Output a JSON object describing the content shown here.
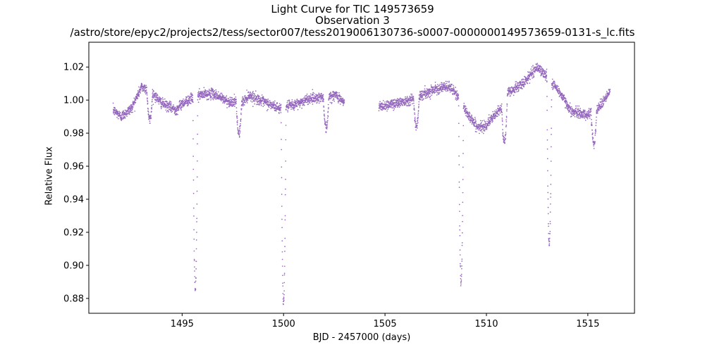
{
  "chart_data": {
    "type": "scatter",
    "title_lines": [
      "Light Curve for TIC 149573659",
      "Observation 3",
      "/astro/store/epyc2/projects2/tess/sector007/tess2019006130736-s0007-0000000149573659-0131-s_lc.fits"
    ],
    "xlabel": "BJD - 2457000 (days)",
    "ylabel": "Relative Flux",
    "xlim": [
      1490.4,
      1517.3
    ],
    "ylim": [
      0.871,
      1.035
    ],
    "xticks": [
      1495,
      1500,
      1505,
      1510,
      1515
    ],
    "yticks": [
      0.88,
      0.9,
      0.92,
      0.94,
      0.96,
      0.98,
      1.0,
      1.02
    ],
    "ytick_labels": [
      "0.88",
      "0.90",
      "0.92",
      "0.94",
      "0.96",
      "0.98",
      "1.00",
      "1.02"
    ],
    "grid": false,
    "marker_color": "#9467bd",
    "series": [
      {
        "segments": [
          [
            1491.6,
            1503.0
          ],
          [
            1504.7,
            1516.1
          ]
        ],
        "baseline": [
          [
            1491.6,
            0.994
          ],
          [
            1492.0,
            0.99
          ],
          [
            1492.5,
            0.995
          ],
          [
            1493.0,
            1.008
          ],
          [
            1493.4,
            1.006
          ],
          [
            1494.0,
            0.998
          ],
          [
            1494.7,
            0.994
          ],
          [
            1495.0,
            0.998
          ],
          [
            1495.8,
            1.003
          ],
          [
            1496.5,
            1.004
          ],
          [
            1497.3,
            0.999
          ],
          [
            1498.0,
            0.999
          ],
          [
            1498.3,
            1.003
          ],
          [
            1499.0,
            0.999
          ],
          [
            1499.8,
            0.995
          ],
          [
            1500.5,
            0.997
          ],
          [
            1501.3,
            1.001
          ],
          [
            1502.0,
            1.002
          ],
          [
            1502.6,
            1.003
          ],
          [
            1503.0,
            0.998
          ],
          [
            1504.7,
            0.996
          ],
          [
            1505.5,
            0.998
          ],
          [
            1506.5,
            1.001
          ],
          [
            1507.5,
            1.007
          ],
          [
            1508.2,
            1.008
          ],
          [
            1508.6,
            1.002
          ],
          [
            1509.0,
            0.993
          ],
          [
            1509.6,
            0.983
          ],
          [
            1510.0,
            0.985
          ],
          [
            1510.8,
            0.996
          ],
          [
            1511.0,
            1.004
          ],
          [
            1511.8,
            1.01
          ],
          [
            1512.5,
            1.02
          ],
          [
            1513.0,
            1.014
          ],
          [
            1513.6,
            1.005
          ],
          [
            1514.2,
            0.993
          ],
          [
            1515.0,
            0.991
          ],
          [
            1515.5,
            0.995
          ],
          [
            1516.1,
            1.005
          ]
        ],
        "dips": [
          {
            "t": 1493.4,
            "depth": 0.018,
            "width": 0.14
          },
          {
            "t": 1495.65,
            "depth": 0.117,
            "width": 0.12
          },
          {
            "t": 1497.8,
            "depth": 0.019,
            "width": 0.14
          },
          {
            "t": 1500.0,
            "depth": 0.118,
            "width": 0.12
          },
          {
            "t": 1502.1,
            "depth": 0.019,
            "width": 0.14
          },
          {
            "t": 1506.55,
            "depth": 0.017,
            "width": 0.14
          },
          {
            "t": 1508.75,
            "depth": 0.109,
            "width": 0.12
          },
          {
            "t": 1510.9,
            "depth": 0.025,
            "width": 0.14
          },
          {
            "t": 1513.1,
            "depth": 0.1,
            "width": 0.12
          },
          {
            "t": 1515.3,
            "depth": 0.019,
            "width": 0.14
          }
        ],
        "scatter_sigma": 0.0015
      }
    ]
  }
}
